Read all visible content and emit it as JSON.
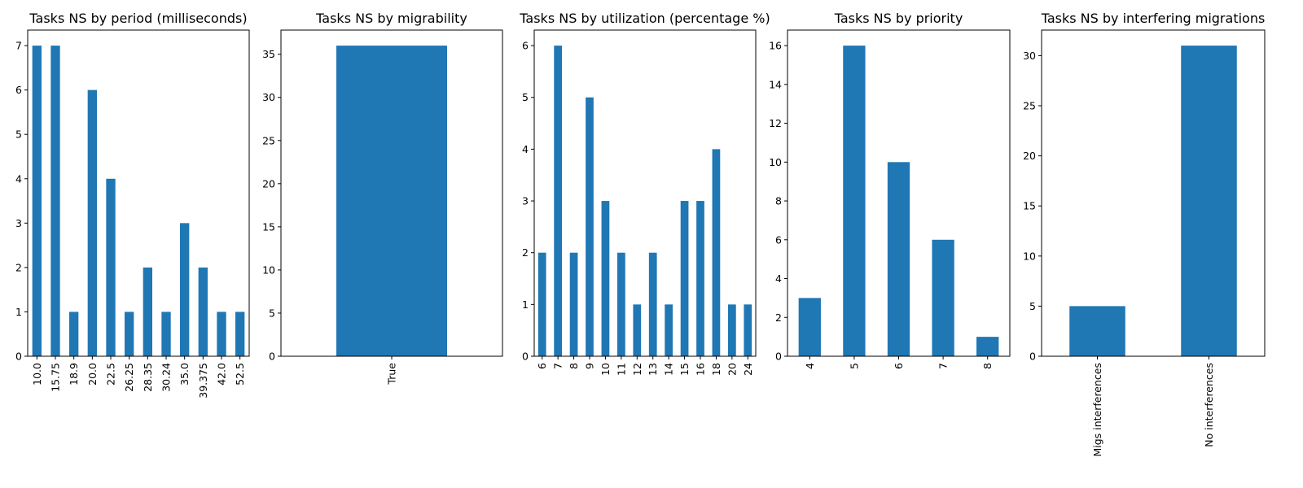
{
  "colors": {
    "bar": "#1f77b4",
    "axis": "#000000",
    "background": "#ffffff"
  },
  "chart_data": [
    {
      "type": "bar",
      "title": "Tasks NS by period (milliseconds)",
      "categories": [
        "10.0",
        "15.75",
        "18.9",
        "20.0",
        "22.5",
        "26.25",
        "28.35",
        "30.24",
        "35.0",
        "39.375",
        "42.0",
        "52.5"
      ],
      "values": [
        7,
        7,
        1,
        6,
        4,
        1,
        2,
        1,
        3,
        2,
        1,
        1
      ],
      "ylim": [
        0,
        7.35
      ],
      "yticks": [
        0,
        1,
        2,
        3,
        4,
        5,
        6,
        7
      ],
      "xlabel": "",
      "ylabel": "",
      "grid": false
    },
    {
      "type": "bar",
      "title": "Tasks NS by migrability",
      "categories": [
        "True"
      ],
      "values": [
        36
      ],
      "ylim": [
        0,
        37.8
      ],
      "yticks": [
        0,
        5,
        10,
        15,
        20,
        25,
        30,
        35
      ],
      "xlabel": "",
      "ylabel": "",
      "grid": false
    },
    {
      "type": "bar",
      "title": "Tasks NS by utilization (percentage %)",
      "categories": [
        "6",
        "7",
        "8",
        "9",
        "10",
        "11",
        "12",
        "13",
        "14",
        "15",
        "16",
        "18",
        "20",
        "24"
      ],
      "values": [
        2,
        6,
        2,
        5,
        3,
        2,
        1,
        2,
        1,
        3,
        3,
        4,
        1,
        1
      ],
      "ylim": [
        0,
        6.3
      ],
      "yticks": [
        0,
        1,
        2,
        3,
        4,
        5,
        6
      ],
      "xlabel": "",
      "ylabel": "",
      "grid": false
    },
    {
      "type": "bar",
      "title": "Tasks NS by priority",
      "categories": [
        "4",
        "5",
        "6",
        "7",
        "8"
      ],
      "values": [
        3,
        16,
        10,
        6,
        1
      ],
      "ylim": [
        0,
        16.8
      ],
      "yticks": [
        0,
        2,
        4,
        6,
        8,
        10,
        12,
        14,
        16
      ],
      "xlabel": "",
      "ylabel": "",
      "grid": false
    },
    {
      "type": "bar",
      "title": "Tasks NS by interfering migrations",
      "categories": [
        "Migs interferences",
        "No interferences"
      ],
      "values": [
        5,
        31
      ],
      "ylim": [
        0,
        32.55
      ],
      "yticks": [
        0,
        5,
        10,
        15,
        20,
        25,
        30
      ],
      "xlabel": "",
      "ylabel": "",
      "grid": false
    }
  ]
}
